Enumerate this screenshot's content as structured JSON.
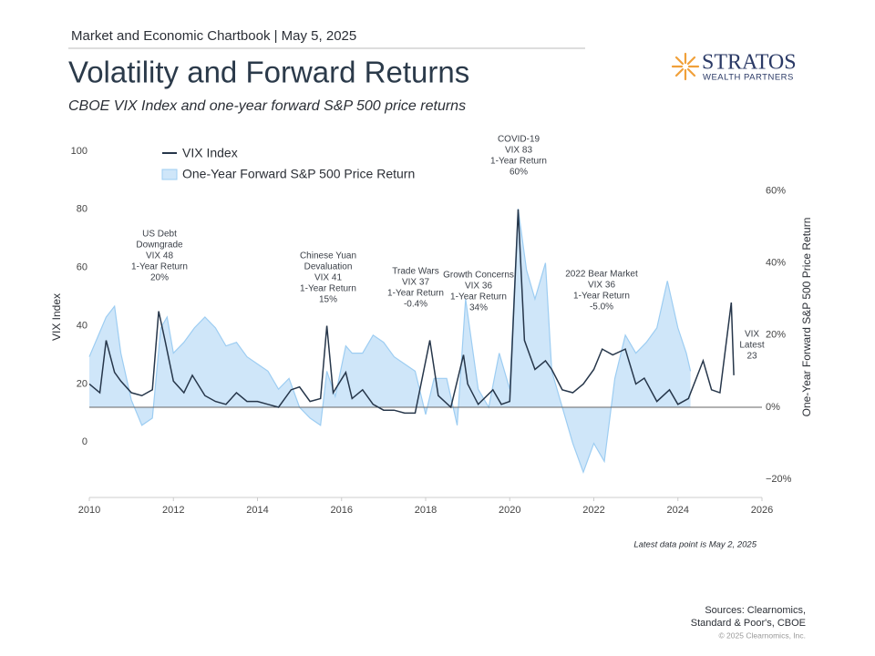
{
  "header": "Market and Economic Chartbook | May 5, 2025",
  "logo": {
    "name": "STRATOS",
    "tagline": "WEALTH PARTNERS"
  },
  "chart_data": {
    "type": "line",
    "title": "Volatility and Forward Returns",
    "subtitle": "CBOE VIX Index and one-year forward S&P 500 price returns",
    "y_label": "VIX Index",
    "y2_label": "One-Year Forward S&P 500 Price Return",
    "xlim": [
      2010,
      2026
    ],
    "xticks": [
      2010,
      2012,
      2014,
      2016,
      2018,
      2020,
      2022,
      2024,
      2026
    ],
    "ylim": [
      -19,
      105
    ],
    "yticks": [
      0,
      20,
      40,
      60,
      80,
      100
    ],
    "y2lim": [
      -25,
      75
    ],
    "y2ticks": [
      {
        "value": -20,
        "label": "−20%"
      },
      {
        "value": 0,
        "label": "0%"
      },
      {
        "value": 20,
        "label": "20%"
      },
      {
        "value": 40,
        "label": "40%"
      },
      {
        "value": 60,
        "label": "60%"
      }
    ],
    "series": [
      {
        "name": "One-Year Forward S&P 500 Price Return",
        "color": "#9dcdf2",
        "fill": "#cfe6f9",
        "axis": "y2",
        "x": [
          2010.0,
          2010.4,
          2010.6,
          2010.75,
          2011.0,
          2011.25,
          2011.5,
          2011.7,
          2011.85,
          2012.0,
          2012.25,
          2012.5,
          2012.75,
          2013.0,
          2013.25,
          2013.5,
          2013.75,
          2014.0,
          2014.25,
          2014.5,
          2014.75,
          2015.0,
          2015.25,
          2015.5,
          2015.65,
          2015.85,
          2016.1,
          2016.25,
          2016.5,
          2016.75,
          2017.0,
          2017.25,
          2017.5,
          2017.75,
          2018.0,
          2018.2,
          2018.5,
          2018.75,
          2018.95,
          2019.25,
          2019.5,
          2019.75,
          2020.0,
          2020.2,
          2020.4,
          2020.6,
          2020.85,
          2021.0,
          2021.25,
          2021.5,
          2021.75,
          2022.0,
          2022.25,
          2022.5,
          2022.75,
          2023.0,
          2023.25,
          2023.5,
          2023.75,
          2024.0,
          2024.2,
          2024.3
        ],
        "values": [
          14,
          25,
          28,
          15,
          2,
          -5,
          -3,
          22,
          25,
          15,
          18,
          22,
          25,
          22,
          17,
          18,
          14,
          12,
          10,
          5,
          8,
          0,
          -3,
          -5,
          10,
          3,
          17,
          15,
          15,
          20,
          18,
          14,
          12,
          10,
          -2,
          8,
          8,
          -5,
          30,
          5,
          0,
          15,
          5,
          55,
          38,
          30,
          40,
          10,
          0,
          -10,
          -18,
          -10,
          -15,
          8,
          20,
          15,
          18,
          22,
          35,
          22,
          15,
          10
        ]
      },
      {
        "name": "VIX Index",
        "color": "#26364a",
        "axis": "y",
        "x": [
          2010.0,
          2010.25,
          2010.4,
          2010.6,
          2010.75,
          2011.0,
          2011.25,
          2011.5,
          2011.65,
          2011.8,
          2012.0,
          2012.25,
          2012.45,
          2012.75,
          2013.0,
          2013.25,
          2013.5,
          2013.75,
          2014.0,
          2014.25,
          2014.5,
          2014.8,
          2015.0,
          2015.25,
          2015.5,
          2015.65,
          2015.8,
          2016.1,
          2016.25,
          2016.5,
          2016.75,
          2017.0,
          2017.25,
          2017.5,
          2017.75,
          2018.1,
          2018.3,
          2018.6,
          2018.9,
          2019.0,
          2019.25,
          2019.6,
          2019.8,
          2020.0,
          2020.2,
          2020.35,
          2020.6,
          2020.85,
          2021.0,
          2021.25,
          2021.5,
          2021.75,
          2022.0,
          2022.2,
          2022.45,
          2022.75,
          2023.0,
          2023.2,
          2023.5,
          2023.8,
          2024.0,
          2024.25,
          2024.6,
          2024.8,
          2025.0,
          2025.27,
          2025.33
        ],
        "values": [
          20,
          17,
          35,
          24,
          21,
          17,
          16,
          18,
          45,
          35,
          21,
          17,
          23,
          16,
          14,
          13,
          17,
          14,
          14,
          13,
          12,
          18,
          19,
          14,
          15,
          40,
          17,
          24,
          15,
          18,
          13,
          11,
          11,
          10,
          10,
          35,
          16,
          12,
          30,
          20,
          13,
          18,
          13,
          14,
          80,
          35,
          25,
          28,
          25,
          18,
          17,
          20,
          25,
          32,
          30,
          32,
          20,
          22,
          14,
          18,
          13,
          15,
          28,
          18,
          17,
          48,
          23
        ]
      }
    ],
    "annotations": [
      {
        "lines": [
          "US Debt",
          "Downgrade",
          "VIX 48",
          "1-Year Return",
          "20%"
        ]
      },
      {
        "lines": [
          "Chinese Yuan",
          "Devaluation",
          "VIX 41",
          "1-Year Return",
          "15%"
        ]
      },
      {
        "lines": [
          "Trade Wars",
          "VIX 37",
          "1-Year Return",
          "-0.4%"
        ]
      },
      {
        "lines": [
          "Growth Concerns",
          "VIX 36",
          "1-Year Return",
          "34%"
        ]
      },
      {
        "lines": [
          "COVID-19",
          "VIX 83",
          "1-Year Return",
          "60%"
        ]
      },
      {
        "lines": [
          "2022 Bear Market",
          "VIX 36",
          "1-Year Return",
          "-5.0%"
        ]
      },
      {
        "lines": [
          "VIX",
          "Latest",
          "23"
        ]
      }
    ],
    "note": "Latest data point is May 2, 2025"
  },
  "sources": [
    "Sources: Clearnomics,",
    "Standard & Poor's, CBOE"
  ],
  "copyright": "© 2025 Clearnomics, Inc."
}
